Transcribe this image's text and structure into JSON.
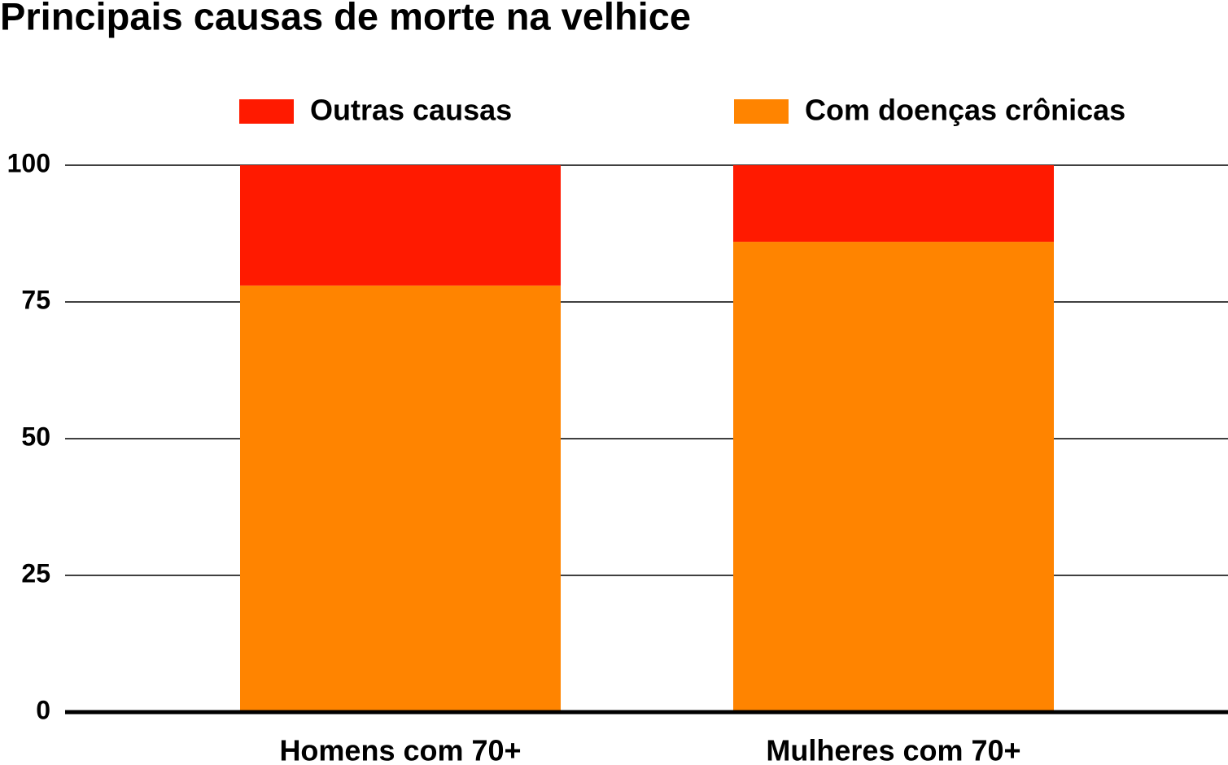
{
  "chart_data": {
    "type": "stacked-bar",
    "title": "Principais causas de morte na velhice",
    "categories": [
      "Homens com 70+",
      "Mulheres com 70+"
    ],
    "series": [
      {
        "name": "Outras causas",
        "color": "#ff1a00",
        "values": [
          22,
          14
        ]
      },
      {
        "name": "Com doenças crônicas",
        "color": "#ff8400",
        "values": [
          78,
          86
        ]
      }
    ],
    "ylim": [
      0,
      100
    ],
    "yticks": [
      0,
      25,
      50,
      75,
      100
    ],
    "grid": true
  }
}
